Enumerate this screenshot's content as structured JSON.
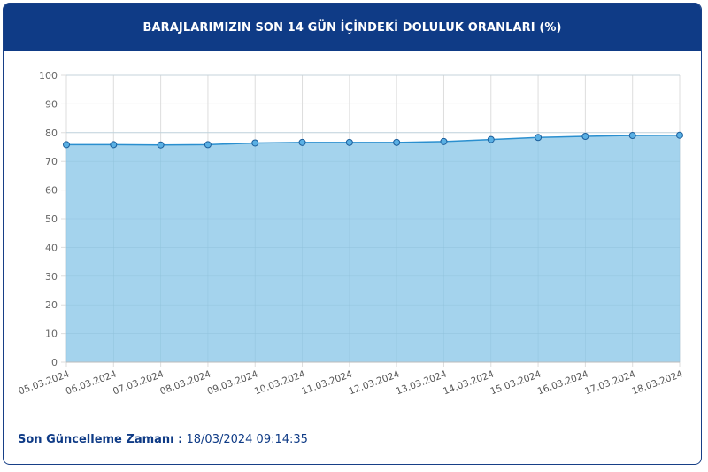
{
  "header": {
    "title": "BARAJLARIMIZIN SON 14 GÜN İÇİNDEKİ DOLULUK ORANLARI (%)"
  },
  "footer": {
    "label": "Son Güncelleme Zamanı :",
    "value": "18/03/2024 09:14:35"
  },
  "colors": {
    "header_bg": "#0f3b86",
    "area_fill": "#9fd1ec",
    "line": "#2a8fcf",
    "marker_fill": "#5ab0e4",
    "marker_stroke": "#1c5f9c",
    "grid": "#dddddd"
  },
  "chart_data": {
    "type": "area",
    "x": [
      "05.03.2024",
      "06.03.2024",
      "07.03.2024",
      "08.03.2024",
      "09.03.2024",
      "10.03.2024",
      "11.03.2024",
      "12.03.2024",
      "13.03.2024",
      "14.03.2024",
      "15.03.2024",
      "16.03.2024",
      "17.03.2024",
      "18.03.2024"
    ],
    "series": [
      {
        "values": [
          75.8,
          75.8,
          75.7,
          75.8,
          76.4,
          76.6,
          76.6,
          76.6,
          76.9,
          77.6,
          78.3,
          78.7,
          79.0,
          79.1
        ]
      }
    ],
    "ylim": [
      0,
      100
    ],
    "yticks": [
      0,
      10,
      20,
      30,
      40,
      50,
      60,
      70,
      80,
      90,
      100
    ],
    "grid": true,
    "legend": "none",
    "title": "",
    "xlabel": "",
    "ylabel": ""
  }
}
